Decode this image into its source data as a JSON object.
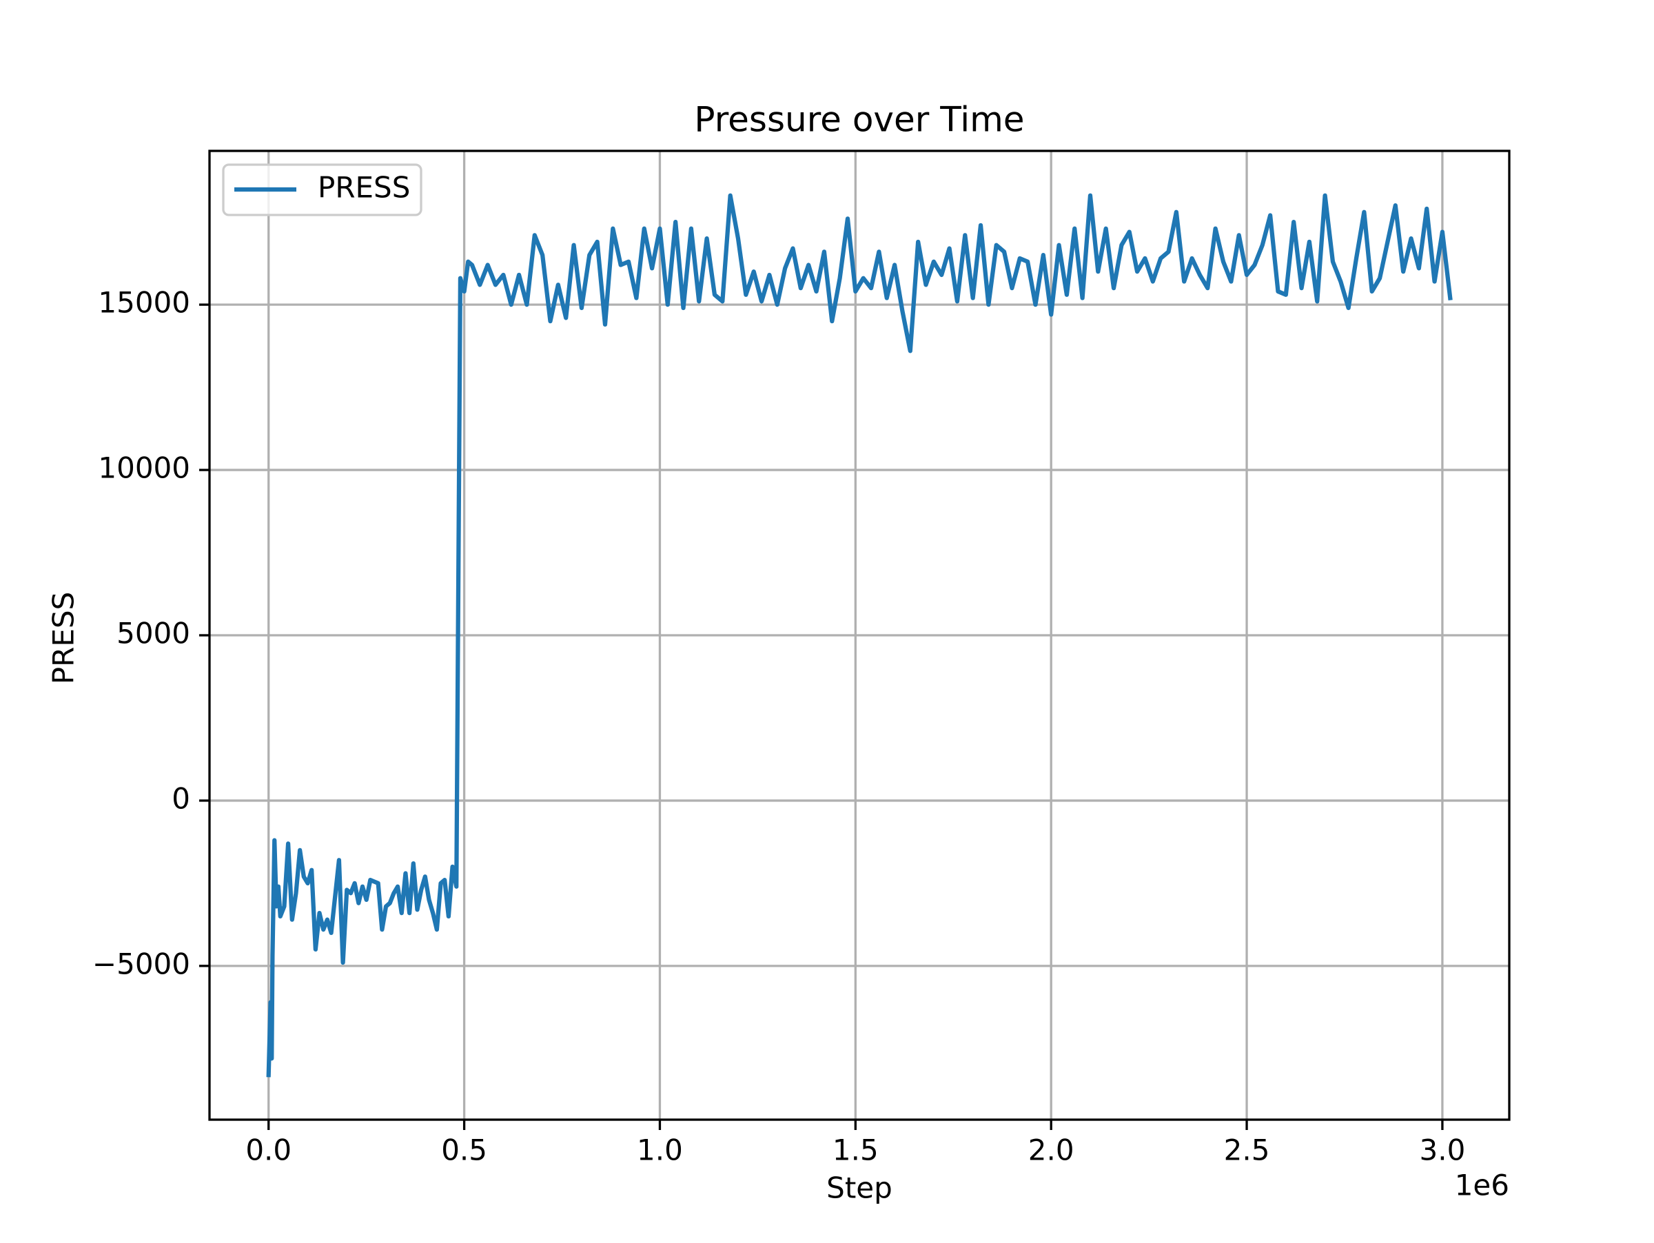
{
  "chart_data": {
    "type": "line",
    "title": "Pressure over Time",
    "xlabel": "Step",
    "ylabel": "PRESS",
    "x_offset_label": "1e6",
    "x": [
      0,
      5000,
      8000,
      10000,
      15000,
      20000,
      25000,
      30000,
      40000,
      50000,
      60000,
      70000,
      80000,
      90000,
      100000,
      110000,
      120000,
      130000,
      140000,
      150000,
      160000,
      180000,
      190000,
      200000,
      210000,
      220000,
      230000,
      240000,
      250000,
      260000,
      280000,
      290000,
      300000,
      310000,
      320000,
      330000,
      340000,
      350000,
      360000,
      370000,
      380000,
      390000,
      400000,
      410000,
      420000,
      430000,
      440000,
      450000,
      460000,
      470000,
      480000,
      490000,
      500000,
      510000,
      520000,
      540000,
      560000,
      580000,
      600000,
      620000,
      640000,
      660000,
      680000,
      700000,
      720000,
      740000,
      760000,
      780000,
      800000,
      820000,
      840000,
      860000,
      880000,
      900000,
      920000,
      940000,
      960000,
      980000,
      1000000,
      1020000,
      1040000,
      1060000,
      1080000,
      1100000,
      1120000,
      1140000,
      1160000,
      1180000,
      1200000,
      1220000,
      1240000,
      1260000,
      1280000,
      1300000,
      1320000,
      1340000,
      1360000,
      1380000,
      1400000,
      1420000,
      1440000,
      1460000,
      1480000,
      1500000,
      1520000,
      1540000,
      1560000,
      1580000,
      1600000,
      1620000,
      1640000,
      1660000,
      1680000,
      1700000,
      1720000,
      1740000,
      1760000,
      1780000,
      1800000,
      1820000,
      1840000,
      1860000,
      1880000,
      1900000,
      1920000,
      1940000,
      1960000,
      1980000,
      2000000,
      2020000,
      2040000,
      2060000,
      2080000,
      2100000,
      2120000,
      2140000,
      2160000,
      2180000,
      2200000,
      2220000,
      2240000,
      2260000,
      2280000,
      2300000,
      2320000,
      2340000,
      2360000,
      2380000,
      2400000,
      2420000,
      2440000,
      2460000,
      2480000,
      2500000,
      2520000,
      2540000,
      2560000,
      2580000,
      2600000,
      2620000,
      2640000,
      2660000,
      2680000,
      2700000,
      2720000,
      2740000,
      2760000,
      2780000,
      2800000,
      2820000,
      2840000,
      2860000,
      2880000,
      2900000,
      2920000,
      2940000,
      2960000,
      2980000,
      3000000,
      3020000
    ],
    "series": [
      {
        "name": "PRESS",
        "color": "#1f77b4",
        "values": [
          -8300,
          -6100,
          -7800,
          -4700,
          -1200,
          -3200,
          -2600,
          -3500,
          -3200,
          -1300,
          -3600,
          -2800,
          -1500,
          -2300,
          -2500,
          -2100,
          -4500,
          -3400,
          -3900,
          -3600,
          -4000,
          -1800,
          -4900,
          -2700,
          -2800,
          -2500,
          -3100,
          -2600,
          -3000,
          -2400,
          -2500,
          -3900,
          -3200,
          -3100,
          -2800,
          -2600,
          -3400,
          -2200,
          -3400,
          -1900,
          -3300,
          -2700,
          -2300,
          -3000,
          -3400,
          -3900,
          -2500,
          -2400,
          -3500,
          -2000,
          -2600,
          15800,
          15400,
          16300,
          16200,
          15600,
          16200,
          15600,
          15900,
          15000,
          15900,
          15000,
          17100,
          16500,
          14500,
          15600,
          14600,
          16800,
          14900,
          16500,
          16900,
          14400,
          17300,
          16200,
          16300,
          15200,
          17300,
          16100,
          17300,
          15000,
          17500,
          14900,
          17300,
          15100,
          17000,
          15300,
          15100,
          18300,
          17000,
          15300,
          16000,
          15100,
          15900,
          15000,
          16100,
          16700,
          15500,
          16200,
          15400,
          16600,
          14500,
          15800,
          17600,
          15400,
          15800,
          15500,
          16600,
          15200,
          16200,
          14800,
          13600,
          16900,
          15600,
          16300,
          15900,
          16700,
          15100,
          17100,
          15200,
          17400,
          15000,
          16800,
          16600,
          15500,
          16400,
          16300,
          15000,
          16500,
          14700,
          16800,
          15300,
          17300,
          15200,
          18300,
          16000,
          17300,
          15500,
          16800,
          17200,
          16000,
          16400,
          15700,
          16400,
          16600,
          17800,
          15700,
          16400,
          15900,
          15500,
          17300,
          16300,
          15700,
          17100,
          15900,
          16200,
          16800,
          17700,
          15400,
          15300,
          17500,
          15500,
          16900,
          15100,
          18300,
          16300,
          15700,
          14900,
          16400,
          17800,
          15400,
          15800,
          16900,
          18000,
          16000,
          17000,
          16100,
          17900,
          15700,
          17200,
          15200
        ]
      }
    ],
    "xlim": [
      -151000,
      3171000
    ],
    "ylim": [
      -9650,
      19650
    ],
    "xticks": [
      {
        "value": 0,
        "label": "0.0"
      },
      {
        "value": 500000,
        "label": "0.5"
      },
      {
        "value": 1000000,
        "label": "1.0"
      },
      {
        "value": 1500000,
        "label": "1.5"
      },
      {
        "value": 2000000,
        "label": "2.0"
      },
      {
        "value": 2500000,
        "label": "2.5"
      },
      {
        "value": 3000000,
        "label": "3.0"
      }
    ],
    "yticks": [
      {
        "value": -5000,
        "label": "−5000"
      },
      0,
      5000,
      10000,
      15000
    ],
    "grid": true,
    "legend": "upper-left"
  }
}
